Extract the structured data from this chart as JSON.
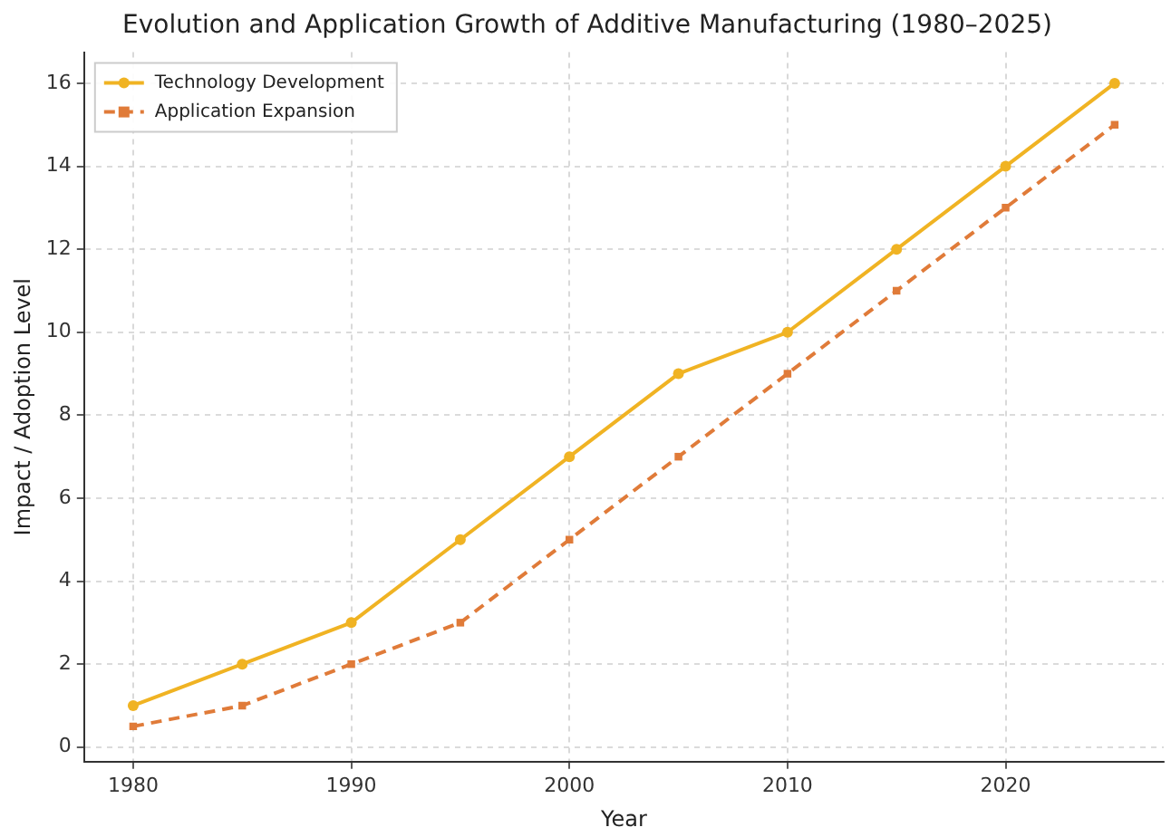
{
  "chart_data": {
    "type": "line",
    "title": "Evolution and Application Growth of Additive Manufacturing (1980–2025)",
    "xlabel": "Year",
    "ylabel": "Impact / Adoption Level",
    "x": [
      1980,
      1985,
      1990,
      1995,
      2000,
      2005,
      2010,
      2015,
      2020,
      2025
    ],
    "series": [
      {
        "name": "Technology Development",
        "color": "#f0b323",
        "marker": "circle",
        "line_style": "solid",
        "values": [
          1,
          2,
          3,
          5,
          7,
          9,
          10,
          12,
          14,
          16
        ]
      },
      {
        "name": "Application Expansion",
        "color": "#e07b39",
        "marker": "square",
        "line_style": "dashed",
        "values": [
          0.5,
          1,
          2,
          3,
          5,
          7,
          9,
          11,
          13,
          15
        ]
      }
    ],
    "xlim": [
      1977.75,
      2027.25
    ],
    "xticks": [
      1980,
      1990,
      2000,
      2010,
      2020
    ],
    "ylim": [
      -0.35,
      16.75
    ],
    "yticks": [
      0,
      2,
      4,
      6,
      8,
      10,
      12,
      14,
      16
    ],
    "grid": true,
    "legend": "top left"
  }
}
